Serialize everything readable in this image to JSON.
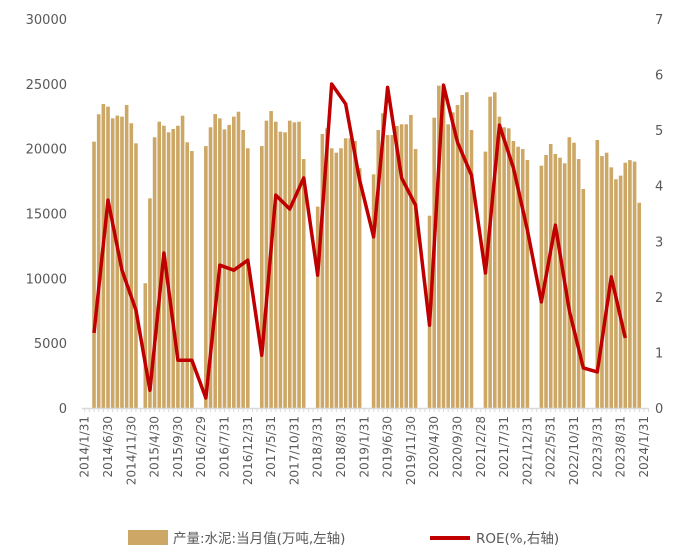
{
  "chart_data": {
    "type": "bar+line",
    "title": "",
    "colors": {
      "bars": "#CDA766",
      "line": "#C00000",
      "axis": "#D9D9D9",
      "text": "#595959"
    },
    "left_axis": {
      "ylim": [
        0,
        30000
      ],
      "ticks": [
        "0",
        "5000",
        "10000",
        "15000",
        "20000",
        "25000",
        "30000"
      ]
    },
    "right_axis": {
      "ylim": [
        0,
        7
      ],
      "ticks": [
        "0",
        "1",
        "2",
        "3",
        "4",
        "5",
        "6",
        "7"
      ]
    },
    "x_tick_labels": [
      "2014/1/31",
      "2014/6/30",
      "2014/11/30",
      "2015/4/30",
      "2015/9/30",
      "2016/2/29",
      "2016/7/31",
      "2016/12/31",
      "2017/5/31",
      "2017/10/31",
      "2018/3/31",
      "2018/8/31",
      "2019/1/31",
      "2019/6/30",
      "2019/11/30",
      "2020/4/30",
      "2020/9/30",
      "2021/2/28",
      "2021/7/31",
      "2021/12/31",
      "2022/5/31",
      "2022/10/31",
      "2023/3/31",
      "2023/8/31",
      "2024/1/31"
    ],
    "legend": {
      "placement": "bottom",
      "bars_label": "产量:水泥:当月值(万吨,左轴)",
      "line_label": "ROE(%,右轴)"
    },
    "series": [
      {
        "name": "产量:水泥:当月值(万吨,左轴)",
        "type": "bar",
        "axis": "left",
        "points": [
          [
            "2014/3",
            20540
          ],
          [
            "2014/4",
            22650
          ],
          [
            "2014/5",
            23440
          ],
          [
            "2014/6",
            23240
          ],
          [
            "2014/7",
            22340
          ],
          [
            "2014/8",
            22550
          ],
          [
            "2014/9",
            22470
          ],
          [
            "2014/10",
            23370
          ],
          [
            "2014/11",
            21960
          ],
          [
            "2014/12",
            20410
          ],
          [
            "2015/2",
            9620
          ],
          [
            "2015/3",
            16170
          ],
          [
            "2015/4",
            20880
          ],
          [
            "2015/5",
            22080
          ],
          [
            "2015/6",
            21770
          ],
          [
            "2015/7",
            21260
          ],
          [
            "2015/8",
            21520
          ],
          [
            "2015/9",
            21770
          ],
          [
            "2015/10",
            22540
          ],
          [
            "2015/11",
            20490
          ],
          [
            "2015/12",
            19820
          ],
          [
            "2016/3",
            20200
          ],
          [
            "2016/4",
            21650
          ],
          [
            "2016/5",
            22670
          ],
          [
            "2016/6",
            22340
          ],
          [
            "2016/7",
            21490
          ],
          [
            "2016/8",
            21830
          ],
          [
            "2016/9",
            22470
          ],
          [
            "2016/10",
            22850
          ],
          [
            "2016/11",
            21440
          ],
          [
            "2016/12",
            20030
          ],
          [
            "2017/3",
            20200
          ],
          [
            "2017/4",
            22160
          ],
          [
            "2017/5",
            22900
          ],
          [
            "2017/6",
            22080
          ],
          [
            "2017/7",
            21310
          ],
          [
            "2017/8",
            21260
          ],
          [
            "2017/9",
            22160
          ],
          [
            "2017/10",
            22030
          ],
          [
            "2017/11",
            22080
          ],
          [
            "2017/12",
            19200
          ],
          [
            "2018/3",
            15530
          ],
          [
            "2018/4",
            21130
          ],
          [
            "2018/5",
            21570
          ],
          [
            "2018/6",
            20030
          ],
          [
            "2018/7",
            19690
          ],
          [
            "2018/8",
            20030
          ],
          [
            "2018/9",
            20800
          ],
          [
            "2018/10",
            20800
          ],
          [
            "2018/11",
            20590
          ],
          [
            "2018/12",
            18490
          ],
          [
            "2019/3",
            18020
          ],
          [
            "2019/4",
            21440
          ],
          [
            "2019/5",
            22730
          ],
          [
            "2019/6",
            21050
          ],
          [
            "2019/7",
            21050
          ],
          [
            "2019/8",
            21750
          ],
          [
            "2019/9",
            21880
          ],
          [
            "2019/10",
            21880
          ],
          [
            "2019/11",
            22600
          ],
          [
            "2019/12",
            19970
          ],
          [
            "2020/3",
            14830
          ],
          [
            "2020/4",
            22390
          ],
          [
            "2020/5",
            24860
          ],
          [
            "2020/6",
            24800
          ],
          [
            "2020/7",
            21880
          ],
          [
            "2020/8",
            22800
          ],
          [
            "2020/9",
            23370
          ],
          [
            "2020/10",
            24140
          ],
          [
            "2020/11",
            24350
          ],
          [
            "2020/12",
            21440
          ],
          [
            "2021/3",
            19770
          ],
          [
            "2021/4",
            24010
          ],
          [
            "2021/5",
            24350
          ],
          [
            "2021/6",
            22470
          ],
          [
            "2021/7",
            21650
          ],
          [
            "2021/8",
            21570
          ],
          [
            "2021/9",
            20590
          ],
          [
            "2021/10",
            20150
          ],
          [
            "2021/11",
            19970
          ],
          [
            "2021/12",
            19130
          ],
          [
            "2022/3",
            18690
          ],
          [
            "2022/4",
            19510
          ],
          [
            "2022/5",
            20360
          ],
          [
            "2022/6",
            19590
          ],
          [
            "2022/7",
            19300
          ],
          [
            "2022/8",
            18870
          ],
          [
            "2022/9",
            20880
          ],
          [
            "2022/10",
            20460
          ],
          [
            "2022/11",
            19200
          ],
          [
            "2022/12",
            16890
          ],
          [
            "2023/3",
            20670
          ],
          [
            "2023/4",
            19430
          ],
          [
            "2023/5",
            19690
          ],
          [
            "2023/6",
            18560
          ],
          [
            "2023/7",
            17640
          ],
          [
            "2023/8",
            17920
          ],
          [
            "2023/9",
            18920
          ],
          [
            "2023/10",
            19120
          ],
          [
            "2023/11",
            19000
          ],
          [
            "2023/12",
            15830
          ]
        ]
      },
      {
        "name": "ROE(%,右轴)",
        "type": "line",
        "axis": "right",
        "points": [
          [
            "2014/3",
            1.35
          ],
          [
            "2014/6",
            3.74
          ],
          [
            "2014/9",
            2.48
          ],
          [
            "2014/12",
            1.76
          ],
          [
            "2015/3",
            0.32
          ],
          [
            "2015/6",
            2.79
          ],
          [
            "2015/9",
            0.86
          ],
          [
            "2015/12",
            0.86
          ],
          [
            "2016/3",
            0.18
          ],
          [
            "2016/6",
            2.57
          ],
          [
            "2016/9",
            2.48
          ],
          [
            "2016/12",
            2.66
          ],
          [
            "2017/3",
            0.95
          ],
          [
            "2017/6",
            3.83
          ],
          [
            "2017/9",
            3.58
          ],
          [
            "2017/12",
            4.14
          ],
          [
            "2018/3",
            2.39
          ],
          [
            "2018/6",
            5.83
          ],
          [
            "2018/9",
            5.47
          ],
          [
            "2018/12",
            4.1
          ],
          [
            "2019/3",
            3.08
          ],
          [
            "2019/6",
            5.77
          ],
          [
            "2019/9",
            4.14
          ],
          [
            "2019/12",
            3.65
          ],
          [
            "2020/3",
            1.49
          ],
          [
            "2020/6",
            5.81
          ],
          [
            "2020/9",
            4.78
          ],
          [
            "2020/12",
            4.19
          ],
          [
            "2021/3",
            2.43
          ],
          [
            "2021/6",
            5.09
          ],
          [
            "2021/9",
            4.32
          ],
          [
            "2021/12",
            3.2
          ],
          [
            "2022/3",
            1.91
          ],
          [
            "2022/6",
            3.29
          ],
          [
            "2022/9",
            1.75
          ],
          [
            "2022/12",
            0.72
          ],
          [
            "2023/3",
            0.65
          ],
          [
            "2023/6",
            2.36
          ],
          [
            "2023/9",
            1.26
          ]
        ]
      }
    ],
    "grid": false
  }
}
